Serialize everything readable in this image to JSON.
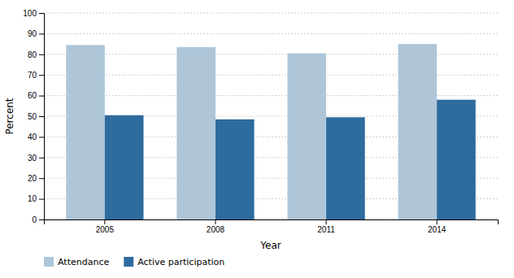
{
  "chart_data": {
    "type": "bar",
    "xlabel": "Year",
    "ylabel": "Percent",
    "categories": [
      "2005",
      "2008",
      "2011",
      "2014"
    ],
    "series": [
      {
        "name": "Attendance",
        "color": "#aec6d8",
        "values": [
          84.5,
          83.5,
          80.5,
          85.0
        ]
      },
      {
        "name": "Active participation",
        "color": "#2e6b9e",
        "values": [
          50.5,
          48.5,
          49.5,
          58.0
        ]
      }
    ],
    "ylim": [
      0,
      100
    ],
    "yticks": [
      0,
      10,
      20,
      30,
      40,
      50,
      60,
      70,
      80,
      90,
      100
    ],
    "grid": true,
    "legend": "bottom"
  }
}
